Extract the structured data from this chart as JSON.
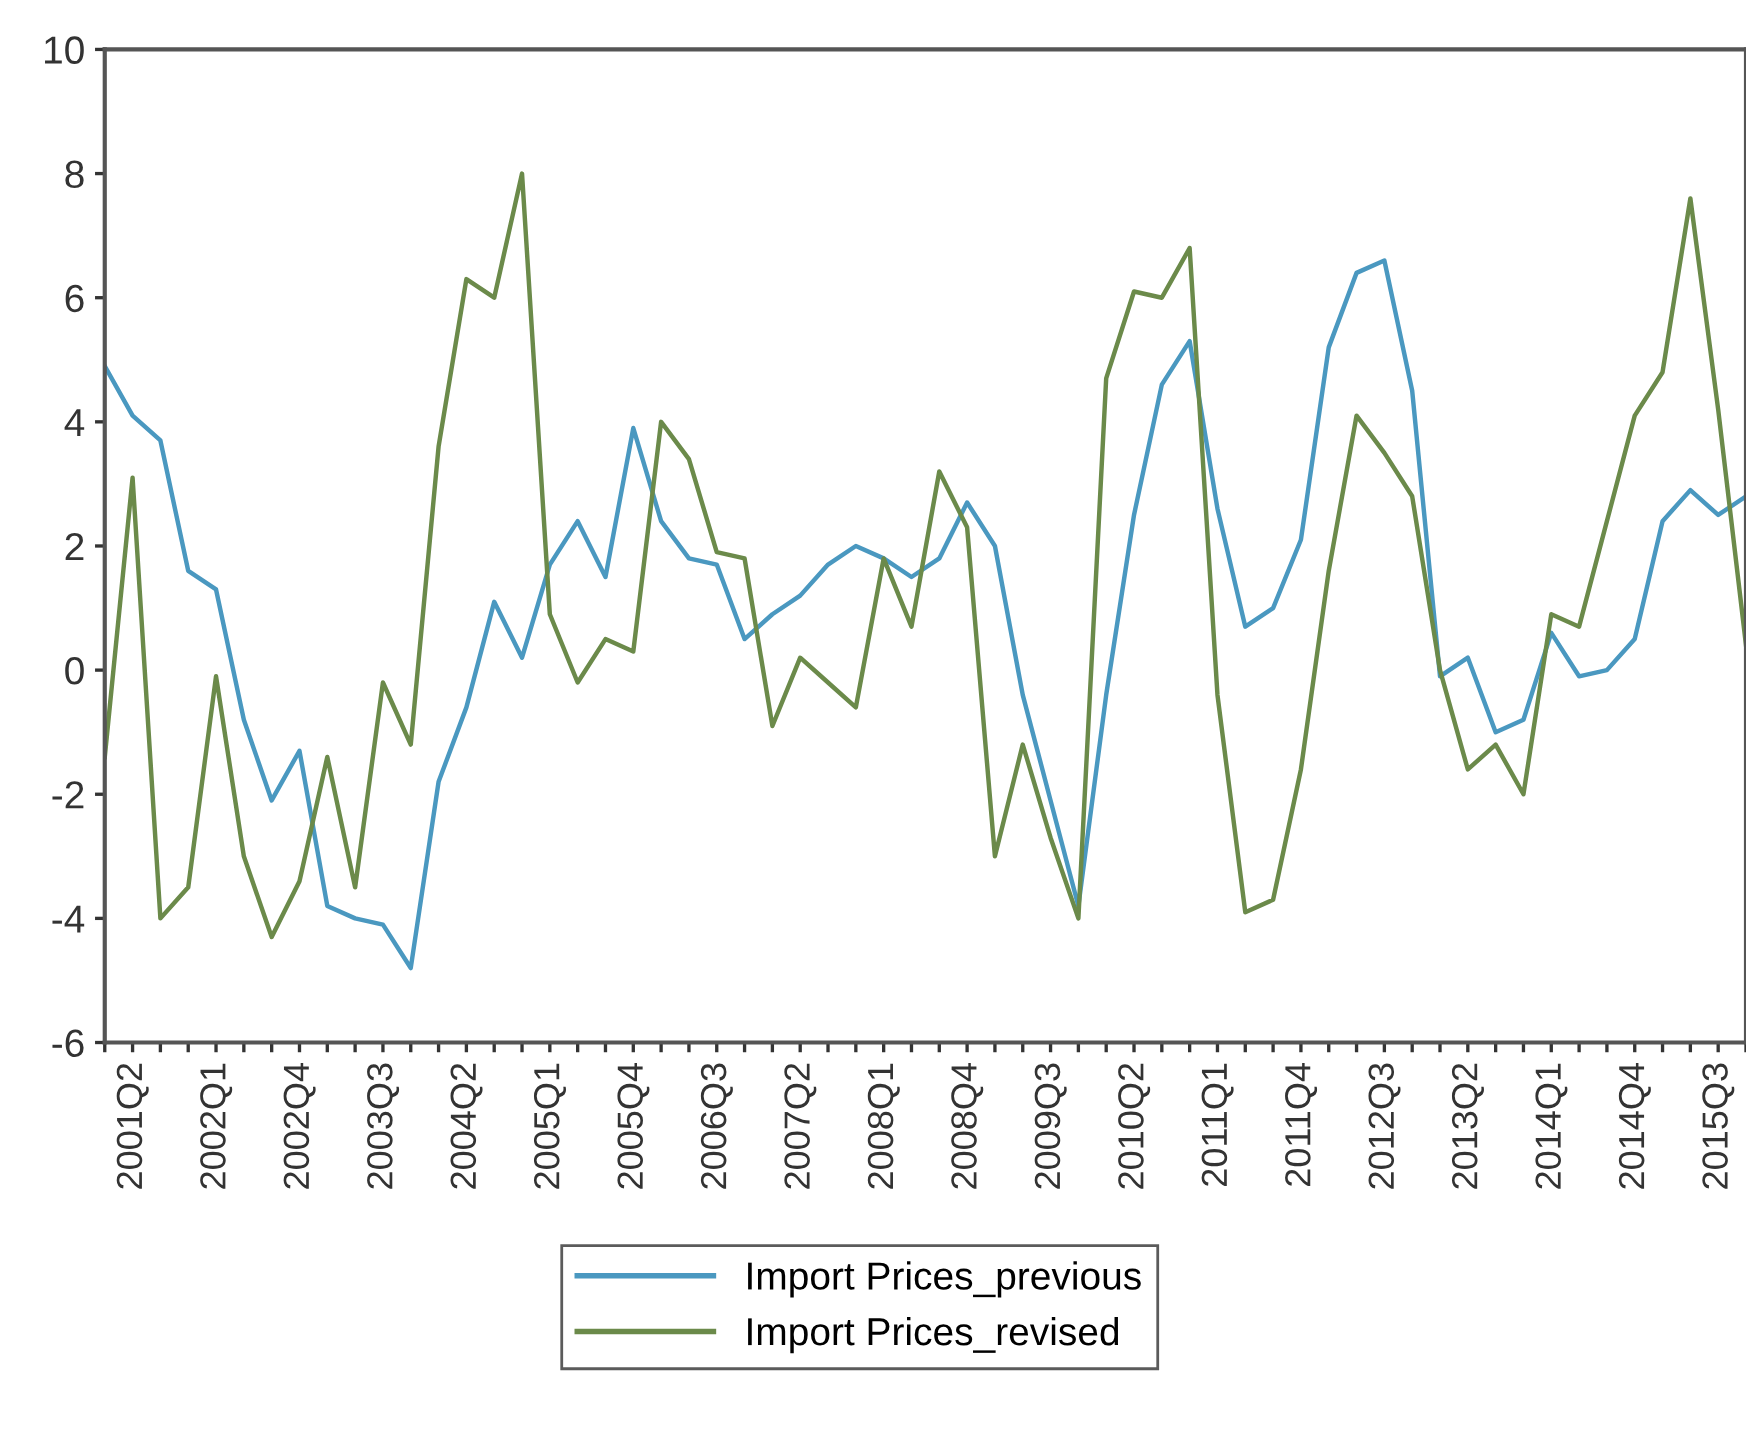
{
  "chart_data": {
    "type": "line",
    "categories": [
      null,
      "2001Q2",
      null,
      null,
      "2002Q1",
      null,
      null,
      "2002Q4",
      null,
      null,
      "2003Q3",
      null,
      null,
      "2004Q2",
      null,
      null,
      "2005Q1",
      null,
      null,
      "2005Q4",
      null,
      null,
      "2006Q3",
      null,
      null,
      "2007Q2",
      null,
      null,
      "2008Q1",
      null,
      null,
      "2008Q4",
      null,
      null,
      "2009Q3",
      null,
      null,
      "2010Q2",
      null,
      null,
      "2011Q1",
      null,
      null,
      "2011Q4",
      null,
      null,
      "2012Q3",
      null,
      null,
      "2013Q2",
      null,
      null,
      "2014Q1",
      null,
      null,
      "2014Q4",
      null,
      null,
      "2015Q3",
      null
    ],
    "series": [
      {
        "name": "Import Prices_previous",
        "color": "#4a98c0",
        "values": [
          4.9,
          4.1,
          3.7,
          1.6,
          1.3,
          -0.8,
          -2.1,
          -1.3,
          -3.8,
          -4.0,
          -4.1,
          -4.8,
          -1.8,
          -0.6,
          1.1,
          0.2,
          1.7,
          2.4,
          1.5,
          3.9,
          2.4,
          1.8,
          1.7,
          0.5,
          0.9,
          1.2,
          1.7,
          2.0,
          1.8,
          1.5,
          1.8,
          2.7,
          2.0,
          -0.4,
          -2.1,
          -3.8,
          -0.4,
          2.5,
          4.6,
          5.3,
          2.6,
          0.7,
          1.0,
          2.1,
          5.2,
          6.4,
          6.6,
          4.5,
          -0.1,
          0.2,
          -1.0,
          -0.8,
          0.6,
          -0.1,
          0.0,
          0.5,
          2.4,
          2.9,
          2.5,
          2.8
        ]
      },
      {
        "name": "Import Prices_revised",
        "color": "#6b8a4a",
        "values": [
          -1.4,
          3.1,
          -4.0,
          -3.5,
          -0.1,
          -3.0,
          -4.3,
          -3.4,
          -1.4,
          -3.5,
          -0.2,
          -1.2,
          3.6,
          6.3,
          6.0,
          8.0,
          0.9,
          -0.2,
          0.5,
          0.3,
          4.0,
          3.4,
          1.9,
          1.8,
          -0.9,
          0.2,
          -0.2,
          -0.6,
          1.8,
          0.7,
          3.2,
          2.3,
          -3.0,
          -1.2,
          -2.7,
          -4.0,
          4.7,
          6.1,
          6.0,
          6.8,
          -0.4,
          -3.9,
          -3.7,
          -1.6,
          1.6,
          4.1,
          3.5,
          2.8,
          0.0,
          -1.6,
          -1.2,
          -2.0,
          0.9,
          0.7,
          2.4,
          4.1,
          4.8,
          7.6,
          4.2,
          0.4
        ]
      }
    ],
    "ylim": [
      -6,
      10
    ],
    "yticks": [
      -6,
      -4,
      -2,
      0,
      2,
      4,
      6,
      8,
      10
    ],
    "grid": false,
    "legend": "bottom",
    "marker": "none",
    "line_style": "solid"
  }
}
